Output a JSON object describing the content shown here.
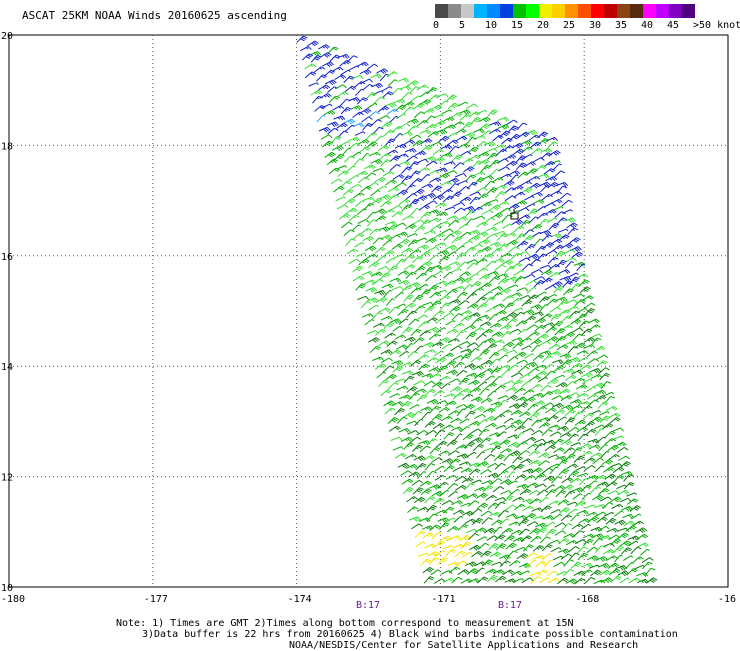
{
  "title": "ASCAT 25KM NOAA Winds 20160625 ascending",
  "legend": {
    "labels": [
      "0",
      "5",
      "10",
      "15",
      "20",
      "25",
      "30",
      "35",
      "40",
      "45",
      ">50 knots"
    ],
    "colors": [
      "#4a4a4a",
      "#8a8a8a",
      "#c8c8c8",
      "#00b4ff",
      "#0088ff",
      "#0040e0",
      "#00c000",
      "#00ff00",
      "#f0f000",
      "#ffd000",
      "#ff9000",
      "#ff5000",
      "#ff0000",
      "#c00000",
      "#8b4513",
      "#5a2a10",
      "#ff00ff",
      "#c000ff",
      "#8000c0",
      "#500080"
    ]
  },
  "axes": {
    "lon_labels": [
      "-180",
      "-177",
      "-174",
      "-171",
      "-168",
      "-16"
    ],
    "lat_labels": [
      "20",
      "18",
      "16",
      "14",
      "12",
      "10"
    ],
    "lon_range": [
      -180,
      -165
    ],
    "lat_range": [
      10,
      20
    ],
    "grid": "dotted"
  },
  "time_marks": [
    "B:17",
    "B:17"
  ],
  "notes": {
    "line1": "Note: 1) Times are GMT 2)Times along bottom correspond to measurement at 15N",
    "line2": "3)Data buffer is 22 hrs from 20160625 4) Black wind barbs indicate possible contamination",
    "line3": "NOAA/NESDIS/Center for Satellite Applications and Research"
  },
  "swath": {
    "corners_lonlat": [
      [
        -174.1,
        20
      ],
      [
        -168.7,
        18.1
      ],
      [
        -166.6,
        10
      ],
      [
        -171.4,
        10
      ]
    ],
    "barb_colors": {
      "light": "#33dd33",
      "mid": "#00aa00",
      "dark": "#0a7a0a",
      "blue": "#1020c8",
      "cyan": "#2aa0ff",
      "yellow": "#f2e400",
      "black": "#000000"
    }
  }
}
